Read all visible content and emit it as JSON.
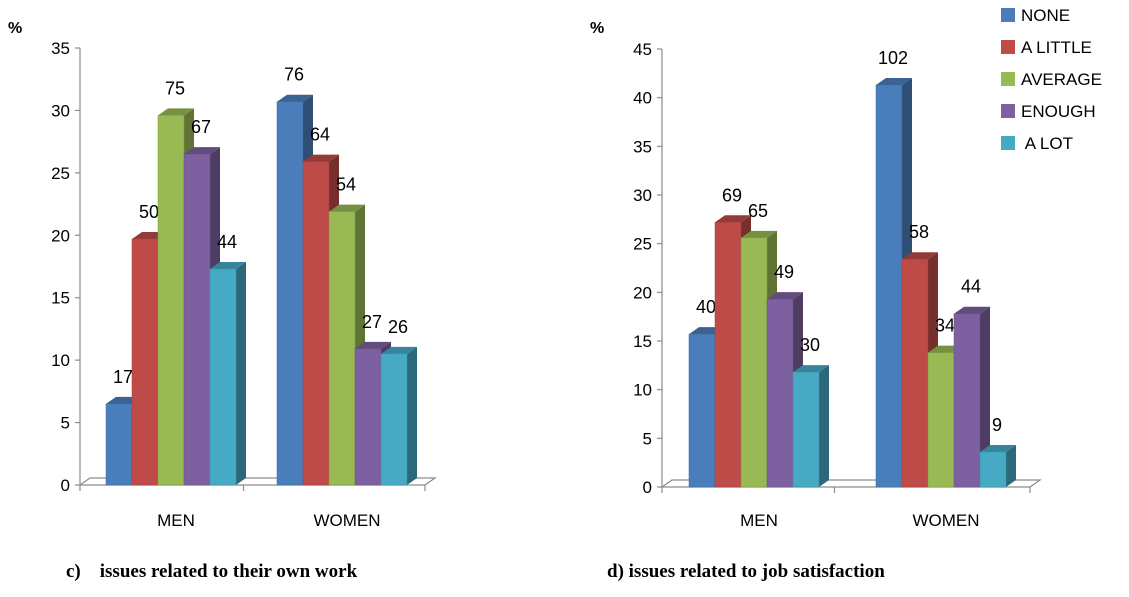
{
  "colors": {
    "NONE": "#4a7ebb",
    "A LITTLE": "#be4b48",
    "AVERAGE": "#98b954",
    "ENOUGH": "#7d60a0",
    "A LOT": "#46aac5"
  },
  "legend": [
    {
      "key": "NONE",
      "label": "NONE"
    },
    {
      "key": "A LITTLE",
      "label": "A LITTLE"
    },
    {
      "key": "AVERAGE",
      "label": "AVERAGE"
    },
    {
      "key": "ENOUGH",
      "label": "ENOUGH"
    },
    {
      "key": "A LOT",
      "label": " A LOT"
    }
  ],
  "chart_data": [
    {
      "type": "bar",
      "caption": "c)    issues related to their own work",
      "ylabel": "%",
      "ylim": [
        0,
        35
      ],
      "yticks": [
        0,
        5,
        10,
        15,
        20,
        25,
        30,
        35
      ],
      "categories": [
        "MEN",
        "WOMEN"
      ],
      "series": [
        {
          "key": "NONE",
          "values": [
            6.5,
            30.7
          ],
          "labels": [
            "17",
            "76"
          ]
        },
        {
          "key": "A LITTLE",
          "values": [
            19.7,
            25.9
          ],
          "labels": [
            "50",
            "64"
          ]
        },
        {
          "key": "AVERAGE",
          "values": [
            29.6,
            21.9
          ],
          "labels": [
            "75",
            "54"
          ]
        },
        {
          "key": "ENOUGH",
          "values": [
            26.5,
            10.9
          ],
          "labels": [
            "67",
            "27"
          ]
        },
        {
          "key": "A LOT",
          "values": [
            17.3,
            10.5
          ],
          "labels": [
            "44",
            "26"
          ]
        }
      ]
    },
    {
      "type": "bar",
      "caption": "d) issues related to job satisfaction",
      "ylabel": "%",
      "ylim": [
        0,
        45
      ],
      "yticks": [
        0,
        5,
        10,
        15,
        20,
        25,
        30,
        35,
        40,
        45
      ],
      "categories": [
        "MEN",
        "WOMEN"
      ],
      "series": [
        {
          "key": "NONE",
          "values": [
            15.7,
            41.3
          ],
          "labels": [
            "40",
            "102"
          ]
        },
        {
          "key": "A LITTLE",
          "values": [
            27.2,
            23.4
          ],
          "labels": [
            "69",
            "58"
          ]
        },
        {
          "key": "AVERAGE",
          "values": [
            25.6,
            13.8
          ],
          "labels": [
            "65",
            "34"
          ]
        },
        {
          "key": "ENOUGH",
          "values": [
            19.3,
            17.8
          ],
          "labels": [
            "49",
            "44"
          ]
        },
        {
          "key": "A LOT",
          "values": [
            11.8,
            3.6
          ],
          "labels": [
            "30",
            "9"
          ]
        }
      ]
    }
  ]
}
